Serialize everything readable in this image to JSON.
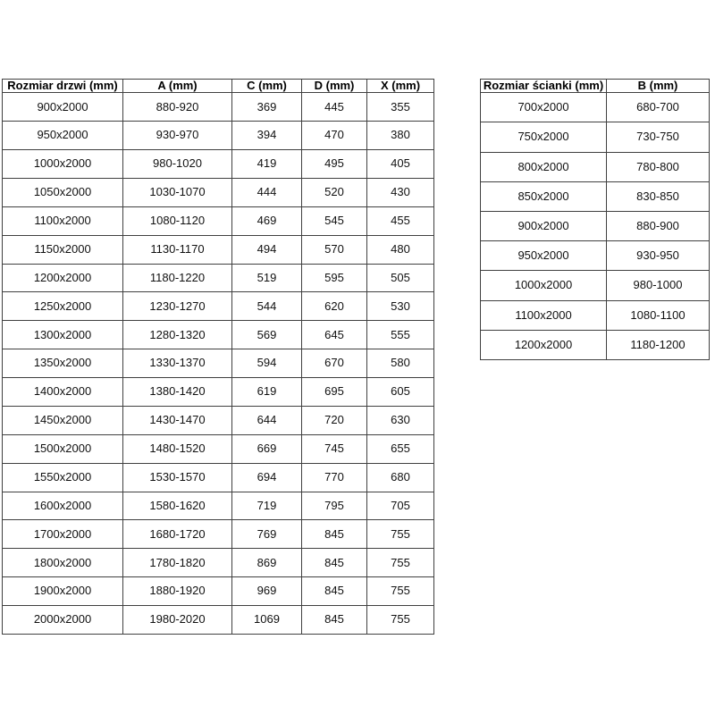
{
  "page": {
    "background_color": "#ffffff",
    "border_color": "#404040",
    "text_color": "#111111"
  },
  "doors_table": {
    "headers": [
      "Rozmiar drzwi (mm)",
      "A (mm)",
      "C (mm)",
      "D (mm)",
      "X (mm)"
    ],
    "rows": [
      [
        "900x2000",
        "880-920",
        "369",
        "445",
        "355"
      ],
      [
        "950x2000",
        "930-970",
        "394",
        "470",
        "380"
      ],
      [
        "1000x2000",
        "980-1020",
        "419",
        "495",
        "405"
      ],
      [
        "1050x2000",
        "1030-1070",
        "444",
        "520",
        "430"
      ],
      [
        "1100x2000",
        "1080-1120",
        "469",
        "545",
        "455"
      ],
      [
        "1150x2000",
        "1130-1170",
        "494",
        "570",
        "480"
      ],
      [
        "1200x2000",
        "1180-1220",
        "519",
        "595",
        "505"
      ],
      [
        "1250x2000",
        "1230-1270",
        "544",
        "620",
        "530"
      ],
      [
        "1300x2000",
        "1280-1320",
        "569",
        "645",
        "555"
      ],
      [
        "1350x2000",
        "1330-1370",
        "594",
        "670",
        "580"
      ],
      [
        "1400x2000",
        "1380-1420",
        "619",
        "695",
        "605"
      ],
      [
        "1450x2000",
        "1430-1470",
        "644",
        "720",
        "630"
      ],
      [
        "1500x2000",
        "1480-1520",
        "669",
        "745",
        "655"
      ],
      [
        "1550x2000",
        "1530-1570",
        "694",
        "770",
        "680"
      ],
      [
        "1600x2000",
        "1580-1620",
        "719",
        "795",
        "705"
      ],
      [
        "1700x2000",
        "1680-1720",
        "769",
        "845",
        "755"
      ],
      [
        "1800x2000",
        "1780-1820",
        "869",
        "845",
        "755"
      ],
      [
        "1900x2000",
        "1880-1920",
        "969",
        "845",
        "755"
      ],
      [
        "2000x2000",
        "1980-2020",
        "1069",
        "845",
        "755"
      ]
    ]
  },
  "walls_table": {
    "headers": [
      "Rozmiar ścianki (mm)",
      "B (mm)"
    ],
    "rows": [
      [
        "700x2000",
        "680-700"
      ],
      [
        "750x2000",
        "730-750"
      ],
      [
        "800x2000",
        "780-800"
      ],
      [
        "850x2000",
        "830-850"
      ],
      [
        "900x2000",
        "880-900"
      ],
      [
        "950x2000",
        "930-950"
      ],
      [
        "1000x2000",
        "980-1000"
      ],
      [
        "1100x2000",
        "1080-1100"
      ],
      [
        "1200x2000",
        "1180-1200"
      ]
    ]
  }
}
